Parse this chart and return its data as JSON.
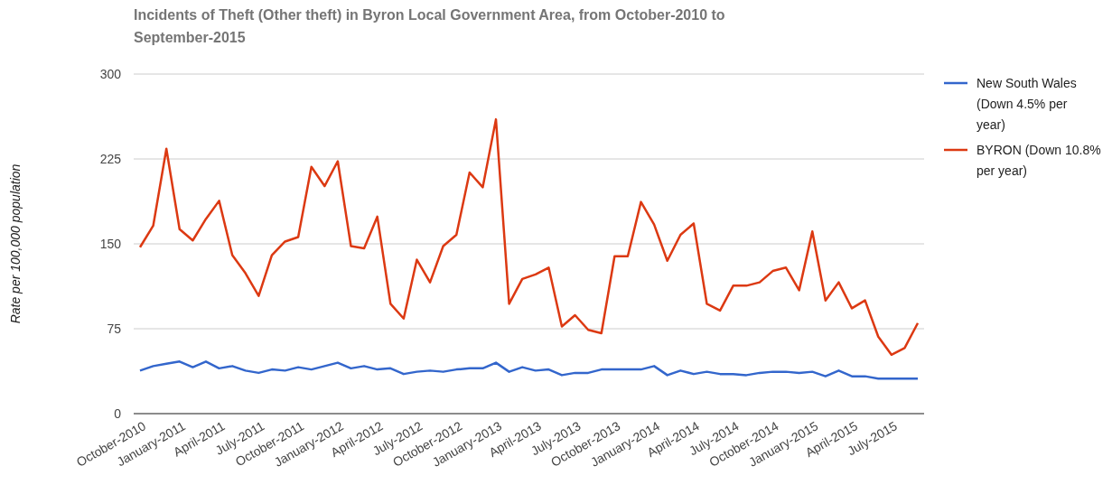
{
  "chart_data": {
    "type": "line",
    "title": "Incidents of Theft (Other theft) in Byron Local Government Area, from October-2010 to September-2015",
    "ylabel": "Rate per 100,000 population",
    "categories": [
      "October-2010",
      null,
      null,
      "January-2011",
      null,
      null,
      "April-2011",
      null,
      null,
      "July-2011",
      null,
      null,
      "October-2011",
      null,
      null,
      "January-2012",
      null,
      null,
      "April-2012",
      null,
      null,
      "July-2012",
      null,
      null,
      "October-2012",
      null,
      null,
      "January-2013",
      null,
      null,
      "April-2013",
      null,
      null,
      "July-2013",
      null,
      null,
      "October-2013",
      null,
      null,
      "January-2014",
      null,
      null,
      "April-2014",
      null,
      null,
      "July-2014",
      null,
      null,
      "October-2014",
      null,
      null,
      "January-2015",
      null,
      null,
      "April-2015",
      null,
      null,
      "July-2015",
      null,
      null
    ],
    "series": [
      {
        "name": "New South Wales (Down 4.5% per year)",
        "color": "#3366cc",
        "values": [
          38,
          42,
          44,
          46,
          41,
          46,
          40,
          42,
          38,
          36,
          39,
          38,
          41,
          39,
          42,
          45,
          40,
          42,
          39,
          40,
          35,
          37,
          38,
          37,
          39,
          40,
          40,
          45,
          37,
          41,
          38,
          39,
          34,
          36,
          36,
          39,
          39,
          39,
          39,
          42,
          34,
          38,
          35,
          37,
          35,
          35,
          34,
          36,
          37,
          37,
          36,
          37,
          33,
          38,
          33,
          33,
          31,
          31,
          31,
          31
        ]
      },
      {
        "name": "BYRON (Down 10.8% per year)",
        "color": "#dc3912",
        "values": [
          147,
          166,
          234,
          163,
          153,
          172,
          188,
          140,
          124,
          104,
          140,
          152,
          156,
          218,
          201,
          223,
          148,
          146,
          174,
          97,
          84,
          136,
          116,
          148,
          158,
          213,
          200,
          260,
          97,
          119,
          123,
          129,
          77,
          87,
          74,
          71,
          139,
          139,
          187,
          167,
          135,
          158,
          168,
          97,
          91,
          113,
          113,
          116,
          126,
          129,
          109,
          161,
          100,
          116,
          93,
          100,
          68,
          52,
          58,
          80
        ]
      }
    ],
    "ylim": [
      0,
      300
    ],
    "yticks": [
      0,
      75,
      150,
      225,
      300
    ],
    "grid": "y",
    "legend": "right",
    "marker": "none",
    "line_style": "solid"
  }
}
